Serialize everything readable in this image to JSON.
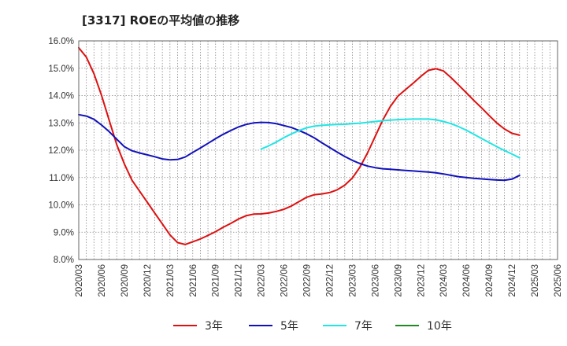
{
  "chart_data": {
    "type": "line",
    "title": "[3317]  ROEの平均値の推移",
    "xlabel": "",
    "ylabel": "",
    "x_ticks": [
      "2020/03",
      "2020/06",
      "2020/09",
      "2020/12",
      "2021/03",
      "2021/06",
      "2021/09",
      "2021/12",
      "2022/03",
      "2022/06",
      "2022/09",
      "2022/12",
      "2023/03",
      "2023/06",
      "2023/09",
      "2023/12",
      "2024/03",
      "2024/06",
      "2024/09",
      "2024/12",
      "2025/03",
      "2025/06"
    ],
    "y_ticks": [
      "8.0%",
      "9.0%",
      "10.0%",
      "11.0%",
      "12.0%",
      "13.0%",
      "14.0%",
      "15.0%",
      "16.0%"
    ],
    "ylim": [
      8.0,
      16.0
    ],
    "grid": true,
    "legend_position": "bottom",
    "series": [
      {
        "name": "3年",
        "color": "#dd1111",
        "points": [
          [
            0,
            15.75
          ],
          [
            1,
            15.4
          ],
          [
            2,
            14.8
          ],
          [
            3,
            14.0
          ],
          [
            4,
            13.1
          ],
          [
            5,
            12.2
          ],
          [
            6,
            11.5
          ],
          [
            7,
            10.9
          ],
          [
            8,
            10.5
          ],
          [
            9,
            10.1
          ],
          [
            10,
            9.7
          ],
          [
            11,
            9.3
          ],
          [
            12,
            8.9
          ],
          [
            13,
            8.62
          ],
          [
            14,
            8.55
          ],
          [
            15,
            8.65
          ],
          [
            16,
            8.75
          ],
          [
            17,
            8.88
          ],
          [
            18,
            9.02
          ],
          [
            19,
            9.18
          ],
          [
            20,
            9.32
          ],
          [
            21,
            9.48
          ],
          [
            22,
            9.6
          ],
          [
            23,
            9.66
          ],
          [
            24,
            9.67
          ],
          [
            25,
            9.7
          ],
          [
            26,
            9.76
          ],
          [
            27,
            9.84
          ],
          [
            28,
            9.96
          ],
          [
            29,
            10.12
          ],
          [
            30,
            10.28
          ],
          [
            31,
            10.37
          ],
          [
            32,
            10.4
          ],
          [
            33,
            10.45
          ],
          [
            34,
            10.55
          ],
          [
            35,
            10.72
          ],
          [
            36,
            10.98
          ],
          [
            37,
            11.38
          ],
          [
            38,
            11.9
          ],
          [
            39,
            12.5
          ],
          [
            40,
            13.1
          ],
          [
            41,
            13.6
          ],
          [
            42,
            13.98
          ],
          [
            43,
            14.22
          ],
          [
            44,
            14.45
          ],
          [
            45,
            14.7
          ],
          [
            46,
            14.92
          ],
          [
            47,
            14.98
          ],
          [
            48,
            14.9
          ],
          [
            49,
            14.65
          ],
          [
            50,
            14.38
          ],
          [
            51,
            14.1
          ],
          [
            52,
            13.82
          ],
          [
            53,
            13.55
          ],
          [
            54,
            13.27
          ],
          [
            55,
            13.0
          ],
          [
            56,
            12.78
          ],
          [
            57,
            12.62
          ],
          [
            58,
            12.55
          ]
        ]
      },
      {
        "name": "5年",
        "color": "#1111bb",
        "points": [
          [
            0,
            13.3
          ],
          [
            1,
            13.25
          ],
          [
            2,
            13.13
          ],
          [
            3,
            12.92
          ],
          [
            4,
            12.68
          ],
          [
            5,
            12.4
          ],
          [
            6,
            12.13
          ],
          [
            7,
            11.98
          ],
          [
            8,
            11.9
          ],
          [
            9,
            11.83
          ],
          [
            10,
            11.76
          ],
          [
            11,
            11.68
          ],
          [
            12,
            11.65
          ],
          [
            13,
            11.66
          ],
          [
            14,
            11.75
          ],
          [
            15,
            11.92
          ],
          [
            16,
            12.08
          ],
          [
            17,
            12.25
          ],
          [
            18,
            12.42
          ],
          [
            19,
            12.58
          ],
          [
            20,
            12.72
          ],
          [
            21,
            12.85
          ],
          [
            22,
            12.94
          ],
          [
            23,
            13.0
          ],
          [
            24,
            13.02
          ],
          [
            25,
            13.01
          ],
          [
            26,
            12.97
          ],
          [
            27,
            12.9
          ],
          [
            28,
            12.83
          ],
          [
            29,
            12.72
          ],
          [
            30,
            12.6
          ],
          [
            31,
            12.45
          ],
          [
            32,
            12.27
          ],
          [
            33,
            12.1
          ],
          [
            34,
            11.93
          ],
          [
            35,
            11.77
          ],
          [
            36,
            11.63
          ],
          [
            37,
            11.51
          ],
          [
            38,
            11.42
          ],
          [
            39,
            11.36
          ],
          [
            40,
            11.32
          ],
          [
            41,
            11.3
          ],
          [
            42,
            11.28
          ],
          [
            43,
            11.26
          ],
          [
            44,
            11.24
          ],
          [
            45,
            11.22
          ],
          [
            46,
            11.2
          ],
          [
            47,
            11.17
          ],
          [
            48,
            11.13
          ],
          [
            49,
            11.08
          ],
          [
            50,
            11.03
          ],
          [
            51,
            11.0
          ],
          [
            52,
            10.97
          ],
          [
            53,
            10.95
          ],
          [
            54,
            10.93
          ],
          [
            55,
            10.91
          ],
          [
            56,
            10.9
          ],
          [
            57,
            10.94
          ],
          [
            58,
            11.08
          ]
        ]
      },
      {
        "name": "7年",
        "color": "#22e5e5",
        "points": [
          [
            24,
            12.04
          ],
          [
            25,
            12.16
          ],
          [
            26,
            12.3
          ],
          [
            27,
            12.46
          ],
          [
            28,
            12.6
          ],
          [
            29,
            12.72
          ],
          [
            30,
            12.82
          ],
          [
            31,
            12.88
          ],
          [
            32,
            12.91
          ],
          [
            33,
            12.93
          ],
          [
            34,
            12.94
          ],
          [
            35,
            12.95
          ],
          [
            36,
            12.97
          ],
          [
            37,
            12.99
          ],
          [
            38,
            13.02
          ],
          [
            39,
            13.05
          ],
          [
            40,
            13.08
          ],
          [
            41,
            13.1
          ],
          [
            42,
            13.12
          ],
          [
            43,
            13.13
          ],
          [
            44,
            13.14
          ],
          [
            45,
            13.14
          ],
          [
            46,
            13.14
          ],
          [
            47,
            13.11
          ],
          [
            48,
            13.05
          ],
          [
            49,
            12.97
          ],
          [
            50,
            12.86
          ],
          [
            51,
            12.73
          ],
          [
            52,
            12.58
          ],
          [
            53,
            12.43
          ],
          [
            54,
            12.28
          ],
          [
            55,
            12.13
          ],
          [
            56,
            11.99
          ],
          [
            57,
            11.86
          ],
          [
            58,
            11.72
          ]
        ]
      },
      {
        "name": "10年",
        "color": "#228822",
        "points": []
      }
    ]
  }
}
